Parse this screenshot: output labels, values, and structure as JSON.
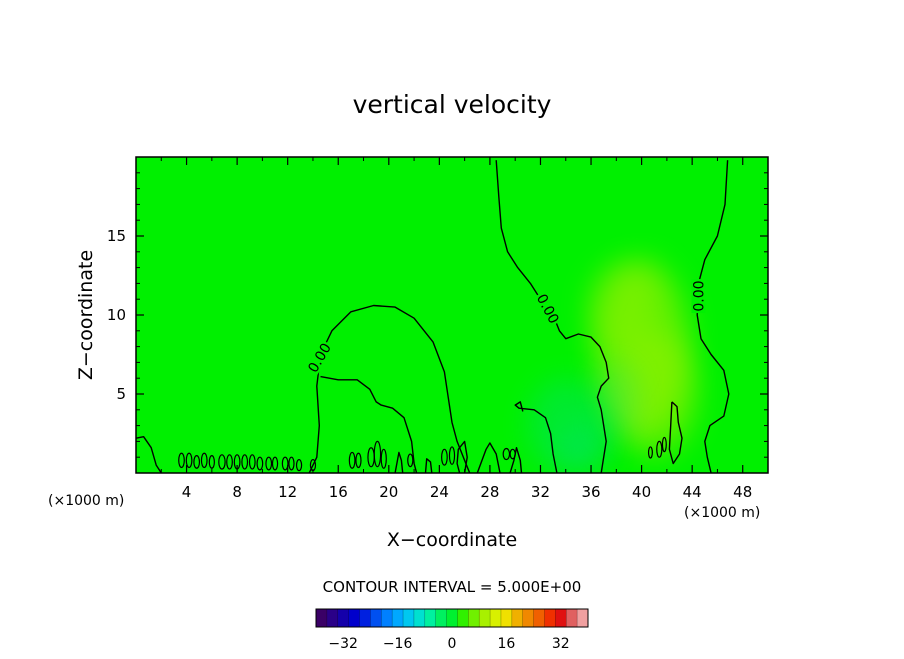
{
  "chart_data": {
    "type": "heatmap",
    "title": "vertical velocity",
    "xlabel": "X−coordinate",
    "ylabel": "Z−coordinate",
    "x_unit_left": "(×1000 m)",
    "x_unit_right": "(×1000 m)",
    "xlim": [
      0,
      50
    ],
    "ylim": [
      0,
      20
    ],
    "x_ticks": [
      4,
      8,
      12,
      16,
      20,
      24,
      28,
      32,
      36,
      40,
      44,
      48
    ],
    "y_ticks": [
      5,
      10,
      15
    ],
    "field_color": "#00f000",
    "contour_color": "#000000",
    "contour_labels": [
      {
        "text": "0.00",
        "x": 14.5,
        "y": 7.3,
        "angle": -60
      },
      {
        "text": "0.00",
        "x": 32.6,
        "y": 10.4,
        "angle": 62
      },
      {
        "text": "0.00",
        "x": 44.5,
        "y": 11.2,
        "angle": -90
      }
    ],
    "contours": [
      [
        [
          0,
          2.2
        ],
        [
          0.6,
          2.3
        ],
        [
          1.2,
          1.6
        ],
        [
          1.6,
          0.5
        ],
        [
          2.0,
          0
        ]
      ],
      [
        [
          13.7,
          0
        ],
        [
          14.3,
          1.0
        ],
        [
          14.5,
          3.0
        ],
        [
          14.3,
          5.5
        ],
        [
          14.6,
          7.5
        ],
        [
          15.5,
          9.0
        ],
        [
          17.0,
          10.2
        ],
        [
          18.8,
          10.6
        ],
        [
          20.5,
          10.5
        ],
        [
          22.0,
          9.8
        ],
        [
          23.5,
          8.3
        ],
        [
          24.4,
          6.4
        ],
        [
          24.7,
          4.8
        ],
        [
          25.0,
          3.2
        ],
        [
          25.4,
          2.0
        ],
        [
          26.0,
          0.8
        ],
        [
          26.4,
          0
        ]
      ],
      [
        [
          14.6,
          6.1
        ],
        [
          16.0,
          5.9
        ],
        [
          17.5,
          5.9
        ],
        [
          18.5,
          5.3
        ],
        [
          19.0,
          4.5
        ],
        [
          19.4,
          4.3
        ],
        [
          20.3,
          4.1
        ],
        [
          21.2,
          3.5
        ],
        [
          21.8,
          2.0
        ],
        [
          22.0,
          0.6
        ],
        [
          22.2,
          0
        ]
      ],
      [
        [
          28.5,
          19.8
        ],
        [
          28.7,
          17.5
        ],
        [
          28.9,
          15.5
        ],
        [
          29.4,
          14.0
        ],
        [
          30.2,
          13.0
        ],
        [
          31.2,
          12.0
        ],
        [
          32.0,
          11.0
        ],
        [
          33.0,
          10.0
        ],
        [
          33.5,
          9.0
        ],
        [
          34.0,
          8.5
        ],
        [
          35.0,
          8.8
        ],
        [
          36.0,
          8.6
        ],
        [
          36.7,
          8.0
        ],
        [
          37.2,
          7.0
        ],
        [
          37.4,
          6.0
        ],
        [
          36.8,
          5.5
        ],
        [
          36.5,
          4.8
        ],
        [
          36.8,
          4.0
        ],
        [
          37.0,
          3.0
        ],
        [
          37.2,
          2.0
        ],
        [
          37.0,
          1.0
        ],
        [
          36.8,
          0
        ]
      ],
      [
        [
          46.8,
          19.8
        ],
        [
          46.6,
          17.0
        ],
        [
          46.0,
          15.0
        ],
        [
          45.0,
          13.5
        ],
        [
          44.5,
          12.0
        ],
        [
          44.4,
          10.0
        ],
        [
          44.7,
          8.5
        ],
        [
          45.5,
          7.5
        ],
        [
          46.5,
          6.5
        ],
        [
          46.9,
          5.0
        ],
        [
          46.5,
          3.6
        ],
        [
          45.4,
          3.0
        ],
        [
          45.0,
          2.0
        ],
        [
          45.2,
          1.0
        ],
        [
          45.5,
          0
        ]
      ],
      [
        [
          42.4,
          4.5
        ],
        [
          42.8,
          4.2
        ],
        [
          42.9,
          3.2
        ],
        [
          43.2,
          2.2
        ],
        [
          43.0,
          1.2
        ],
        [
          42.5,
          0.6
        ],
        [
          42.2,
          1.5
        ],
        [
          42.3,
          3.0
        ],
        [
          42.4,
          4.5
        ]
      ],
      [
        [
          33.3,
          0
        ],
        [
          33.0,
          1.2
        ],
        [
          32.8,
          2.5
        ],
        [
          32.4,
          3.5
        ],
        [
          31.5,
          4.0
        ],
        [
          30.3,
          4.1
        ],
        [
          30.0,
          4.3
        ],
        [
          30.4,
          4.5
        ],
        [
          30.6,
          3.9
        ]
      ],
      [
        [
          30.5,
          0
        ],
        [
          30.4,
          0.8
        ],
        [
          30.1,
          1.6
        ],
        [
          29.9,
          0.8
        ],
        [
          29.6,
          0
        ]
      ],
      [
        [
          27.0,
          0
        ],
        [
          27.7,
          1.5
        ],
        [
          28.0,
          1.9
        ],
        [
          28.5,
          1.2
        ],
        [
          28.8,
          0
        ]
      ],
      [
        [
          26.0,
          0
        ],
        [
          26.2,
          1.0
        ],
        [
          26.0,
          2.0
        ],
        [
          25.5,
          1.5
        ],
        [
          25.4,
          0.6
        ],
        [
          25.6,
          0
        ]
      ],
      [
        [
          22.9,
          0
        ],
        [
          23.0,
          0.9
        ],
        [
          23.3,
          0.7
        ],
        [
          23.4,
          0
        ]
      ],
      [
        [
          20.5,
          0
        ],
        [
          20.8,
          1.3
        ],
        [
          21.0,
          0.8
        ],
        [
          21.1,
          0
        ]
      ]
    ],
    "blobs": [
      [
        3.6,
        0.8,
        0.22,
        0.45
      ],
      [
        4.2,
        0.8,
        0.22,
        0.45
      ],
      [
        4.8,
        0.7,
        0.22,
        0.4
      ],
      [
        5.4,
        0.8,
        0.22,
        0.45
      ],
      [
        6.0,
        0.7,
        0.2,
        0.4
      ],
      [
        6.8,
        0.7,
        0.25,
        0.45
      ],
      [
        7.4,
        0.7,
        0.22,
        0.45
      ],
      [
        8.0,
        0.7,
        0.22,
        0.45
      ],
      [
        8.6,
        0.7,
        0.22,
        0.45
      ],
      [
        9.2,
        0.7,
        0.22,
        0.45
      ],
      [
        9.8,
        0.6,
        0.22,
        0.4
      ],
      [
        10.5,
        0.6,
        0.22,
        0.4
      ],
      [
        11.0,
        0.6,
        0.2,
        0.4
      ],
      [
        11.8,
        0.6,
        0.22,
        0.4
      ],
      [
        12.3,
        0.6,
        0.2,
        0.4
      ],
      [
        12.9,
        0.5,
        0.2,
        0.35
      ],
      [
        14.0,
        0.5,
        0.2,
        0.35
      ],
      [
        17.1,
        0.8,
        0.22,
        0.5
      ],
      [
        17.6,
        0.8,
        0.2,
        0.45
      ],
      [
        18.6,
        1.0,
        0.25,
        0.6
      ],
      [
        19.1,
        1.2,
        0.25,
        0.8
      ],
      [
        19.6,
        0.9,
        0.2,
        0.6
      ],
      [
        21.7,
        0.8,
        0.2,
        0.4
      ],
      [
        24.4,
        1.0,
        0.22,
        0.5
      ],
      [
        25.0,
        1.1,
        0.2,
        0.55
      ],
      [
        29.3,
        1.2,
        0.25,
        0.35
      ],
      [
        29.8,
        1.2,
        0.2,
        0.3
      ],
      [
        41.4,
        1.5,
        0.2,
        0.5
      ],
      [
        41.8,
        1.8,
        0.15,
        0.45
      ],
      [
        40.7,
        1.3,
        0.15,
        0.35
      ]
    ],
    "warm_regions": [
      [
        40.0,
        8.0,
        3.8,
        5.5,
        0.55
      ],
      [
        41.0,
        5.0,
        3.5,
        4.0,
        0.45
      ],
      [
        38.5,
        10.5,
        2.8,
        2.8,
        0.35
      ]
    ],
    "cool_regions": [
      [
        34.0,
        3.0,
        3.0,
        3.0,
        0.35
      ],
      [
        35.5,
        1.5,
        2.0,
        1.5,
        0.3
      ],
      [
        38.0,
        4.5,
        1.8,
        2.5,
        0.25
      ]
    ],
    "contour_interval_text": "CONTOUR INTERVAL = 5.000E+00",
    "colorbar": {
      "range": [
        -40,
        40
      ],
      "ticks": [
        -32,
        -16,
        0,
        16,
        32
      ],
      "tick_labels": [
        "−32",
        "−16",
        "0",
        "16",
        "32"
      ],
      "colors": [
        "#3a0066",
        "#2a0088",
        "#1400aa",
        "#0000cc",
        "#0020e0",
        "#0050f0",
        "#0080ff",
        "#00a8ff",
        "#00c8f0",
        "#00e0d0",
        "#00f0a0",
        "#00f060",
        "#00f030",
        "#30f000",
        "#70f000",
        "#a8f000",
        "#d8f000",
        "#f0e000",
        "#f0b000",
        "#f08800",
        "#f06000",
        "#f03000",
        "#e01010",
        "#e06060",
        "#f0a0a0"
      ]
    }
  }
}
